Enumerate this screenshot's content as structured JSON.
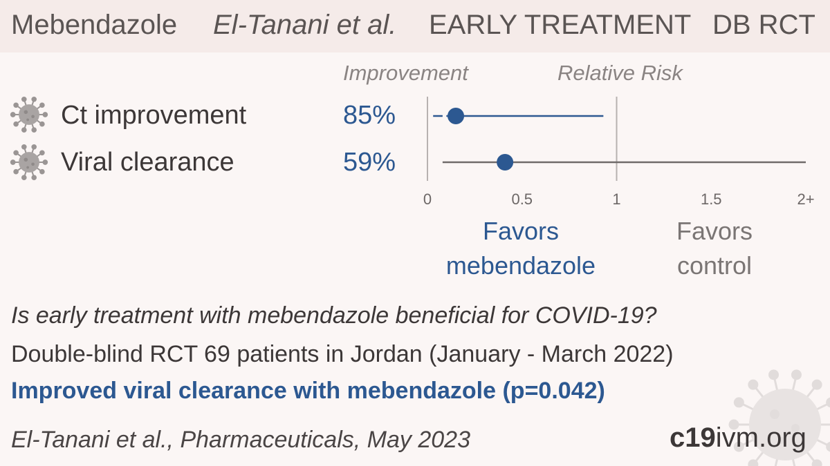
{
  "header": {
    "drug": "Mebendazole",
    "authors": "El-Tanani et al.",
    "stage": "EARLY TREATMENT",
    "design": "DB RCT"
  },
  "columns": {
    "improvement": "Improvement",
    "relative_risk": "Relative Risk"
  },
  "chart_data": {
    "type": "forest",
    "rows": [
      {
        "label": "Ct improvement",
        "improvement": "85%",
        "rr": 0.15,
        "ci_low": 0.01,
        "ci_high": 0.93,
        "ci_low_label": ""
      },
      {
        "label": "Viral clearance",
        "improvement": "59%",
        "rr": 0.41,
        "ci_low": 0.08,
        "ci_high": 2.0
      }
    ],
    "xaxis": {
      "min": 0,
      "max": 2,
      "ticks": [
        "0",
        "0.5",
        "1",
        "1.5",
        "2+"
      ]
    },
    "favors_treatment": [
      "Favors",
      "mebendazole"
    ],
    "favors_control": [
      "Favors",
      "control"
    ],
    "colors": {
      "treatment": "#2c5891",
      "control": "#6f6a69",
      "axis": "#b7b1b0"
    }
  },
  "summary": {
    "question": "Is early treatment with mebendazole beneficial for COVID-19?",
    "design": "Double-blind RCT 69 patients in Jordan (January - March 2022)",
    "result": "Improved viral clearance with mebendazole (p=0.042)"
  },
  "citation": "El-Tanani et al., Pharmaceuticals, May 2023",
  "brand": {
    "bold": "c19",
    "rest": "ivm.org"
  },
  "icons": {
    "row": "virus-icon",
    "background": "virus-icon"
  }
}
